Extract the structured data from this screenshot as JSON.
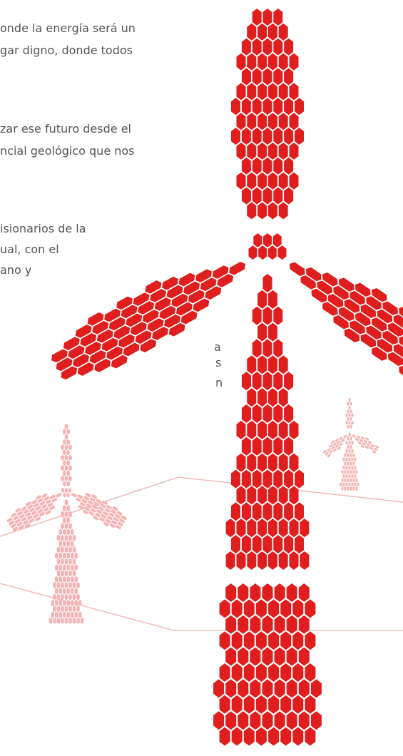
{
  "paragraphs": [
    {
      "lines": [
        "onde la energía será un",
        "gar digno, donde todos"
      ]
    },
    {
      "lines": [
        "zar ese futuro desde el",
        "ncial geológico que nos"
      ]
    },
    {
      "lines": [
        "isionarios de la",
        "ual,  con el",
        "ano y"
      ]
    },
    {
      "lines": [
        "a",
        "s",
        "n"
      ]
    }
  ]
}
